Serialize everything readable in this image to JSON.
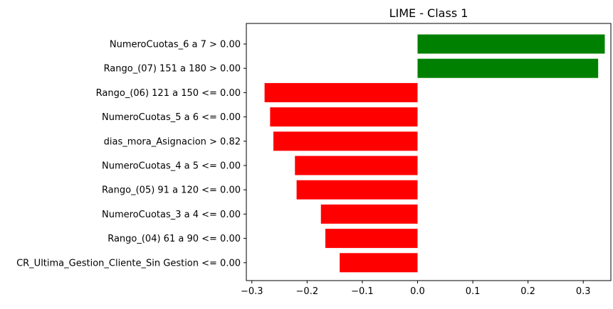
{
  "chart_data": {
    "type": "bar",
    "orientation": "horizontal",
    "title": "LIME - Class 1",
    "xlabel": "",
    "ylabel": "",
    "xlim": [
      -0.31,
      0.35
    ],
    "xticks": [
      -0.3,
      -0.2,
      -0.1,
      0.0,
      0.1,
      0.2,
      0.3
    ],
    "xtick_labels": [
      "−0.3",
      "−0.2",
      "−0.1",
      "0.0",
      "0.1",
      "0.2",
      "0.3"
    ],
    "grid": false,
    "legend": "none",
    "colors": {
      "positive": "#008000",
      "negative": "#ff0000",
      "axis": "#000000"
    },
    "categories": [
      "NumeroCuotas_6 a 7 > 0.00",
      "Rango_(07) 151 a 180 > 0.00",
      "Rango_(06) 121 a 150 <= 0.00",
      "NumeroCuotas_5 a 6 <= 0.00",
      "dias_mora_Asignacion > 0.82",
      "NumeroCuotas_4 a 5 <= 0.00",
      "Rango_(05) 91 a 120 <= 0.00",
      "NumeroCuotas_3 a 4  <= 0.00",
      "Rango_(04) 61 a 90 <= 0.00",
      "CR_Ultima_Gestion_Cliente_Sin Gestion <= 0.00"
    ],
    "values": [
      0.339,
      0.327,
      -0.277,
      -0.267,
      -0.261,
      -0.222,
      -0.219,
      -0.175,
      -0.167,
      -0.141
    ]
  }
}
